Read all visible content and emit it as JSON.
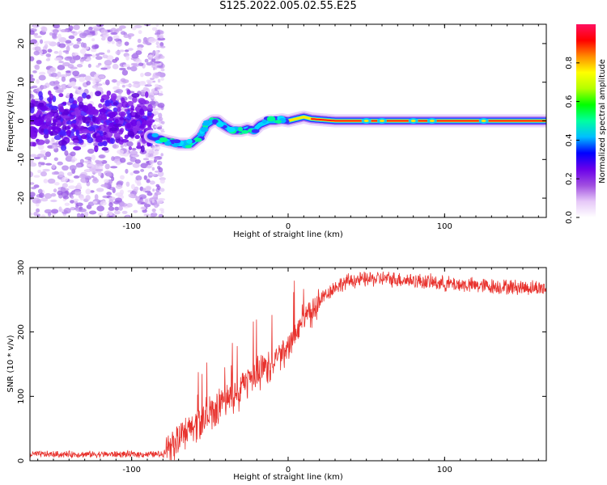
{
  "title": "S125.2022.005.02.55.E25",
  "colors": {
    "accent": "#e8332e",
    "background": "#ffffff"
  },
  "colorbar": {
    "label": "Normalized spectral amplitude",
    "ticks": [
      "0.0",
      "0.2",
      "0.4",
      "0.6",
      "0.8"
    ],
    "range": [
      0,
      1
    ],
    "colors": [
      "#ffffff",
      "#e6c8f8",
      "#a04ee0",
      "#6a00ea",
      "#0000ff",
      "#00bfff",
      "#00ffa0",
      "#00ff00",
      "#b4ff00",
      "#ffff00",
      "#ff8c00",
      "#ff0000",
      "#ff1060"
    ]
  },
  "chart_data": [
    {
      "type": "heatmap",
      "panel": "top",
      "xlabel": "Height of straight line (km)",
      "ylabel": "Frequency (Hz)",
      "xlim": [
        -165,
        165
      ],
      "ylim": [
        -25,
        25
      ],
      "xticks": [
        "-100",
        "0",
        "100"
      ],
      "yticks": [
        "20",
        "10",
        "0",
        "-10",
        "-20"
      ],
      "ridge": {
        "x": [
          -165,
          -100,
          -88,
          -80,
          -70,
          -62,
          -56,
          -52,
          -48,
          -45,
          -42,
          -38,
          -35,
          -30,
          -26,
          -22,
          -18,
          -12,
          -8,
          -4,
          0,
          5,
          10,
          15,
          30,
          50,
          80,
          100,
          120,
          140,
          165
        ],
        "y": [
          0,
          0,
          -4,
          -5,
          -6,
          -6,
          -4,
          -1,
          0,
          0,
          -1,
          -2,
          -2.5,
          -2.5,
          -2,
          -2.5,
          -1,
          0,
          0,
          0.3,
          0,
          0.5,
          1,
          0.5,
          0,
          0,
          0,
          0,
          0,
          0,
          0
        ]
      }
    },
    {
      "type": "line",
      "panel": "bottom",
      "xlabel": "Height of straight line (km)",
      "ylabel": "SNR (10 * v/v)",
      "xlim": [
        -165,
        165
      ],
      "ylim": [
        0,
        300
      ],
      "xticks": [
        "-100",
        "0",
        "100"
      ],
      "yticks": [
        "0",
        "100",
        "200",
        "300"
      ],
      "series": [
        {
          "color": "#e8332e",
          "x": [
            -165,
            -80,
            -76,
            -70,
            -60,
            -50,
            -40,
            -30,
            -20,
            -10,
            0,
            10,
            20,
            30,
            40,
            60,
            80,
            100,
            120,
            140,
            165
          ],
          "y": [
            10,
            10,
            25,
            30,
            55,
            75,
            95,
            115,
            135,
            150,
            175,
            220,
            250,
            270,
            280,
            283,
            280,
            275,
            272,
            270,
            268
          ]
        }
      ]
    }
  ]
}
